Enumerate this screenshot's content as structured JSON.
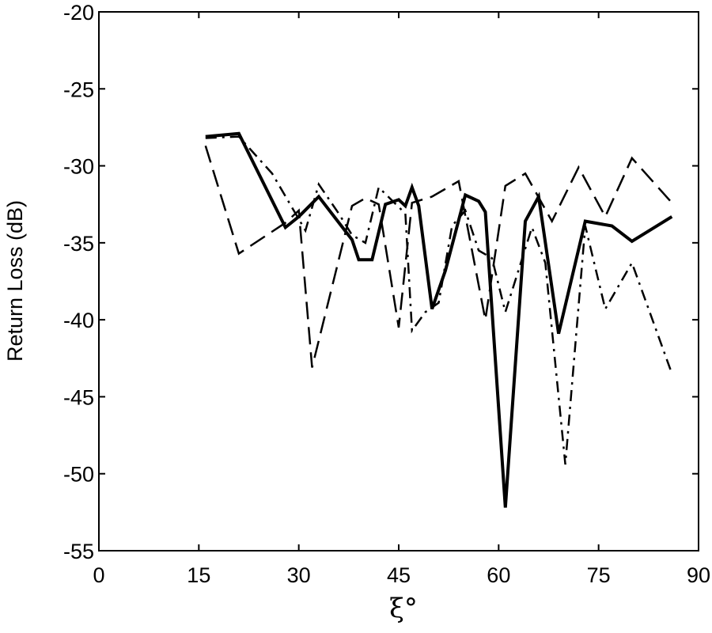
{
  "chart_data": {
    "type": "line",
    "title": "",
    "xlabel": "ξ°",
    "ylabel": "Return Loss (dB)",
    "xlim": [
      0,
      90
    ],
    "ylim": [
      -55,
      -20
    ],
    "xticks": [
      0,
      15,
      30,
      45,
      60,
      75,
      90
    ],
    "yticks": [
      -55,
      -50,
      -45,
      -40,
      -35,
      -30,
      -25,
      -20
    ],
    "grid": false,
    "legend": "none",
    "series": [
      {
        "style": "solid",
        "points": [
          [
            16,
            -28.1
          ],
          [
            21,
            -27.9
          ],
          [
            28,
            -34.0
          ],
          [
            30,
            -33.3
          ],
          [
            33,
            -32.0
          ],
          [
            38,
            -34.8
          ],
          [
            39,
            -36.1
          ],
          [
            41,
            -36.1
          ],
          [
            43,
            -32.5
          ],
          [
            45,
            -32.2
          ],
          [
            46,
            -32.6
          ],
          [
            47,
            -31.4
          ],
          [
            48,
            -32.6
          ],
          [
            50,
            -39.3
          ],
          [
            52,
            -36.8
          ],
          [
            55,
            -31.9
          ],
          [
            57,
            -32.3
          ],
          [
            58,
            -33.0
          ],
          [
            61,
            -52.2
          ],
          [
            64,
            -33.6
          ],
          [
            66,
            -32.0
          ],
          [
            69,
            -40.9
          ],
          [
            73,
            -33.6
          ],
          [
            77,
            -33.9
          ],
          [
            80,
            -34.9
          ],
          [
            86,
            -33.3
          ]
        ]
      },
      {
        "style": "dashed",
        "points": [
          [
            16,
            -28.7
          ],
          [
            21,
            -35.7
          ],
          [
            28,
            -33.7
          ],
          [
            30,
            -32.9
          ],
          [
            32,
            -43.1
          ],
          [
            38,
            -32.6
          ],
          [
            40,
            -32.1
          ],
          [
            42,
            -32.5
          ],
          [
            45,
            -40.5
          ],
          [
            47,
            -32.4
          ],
          [
            50,
            -32.0
          ],
          [
            54,
            -31.0
          ],
          [
            58,
            -40.0
          ],
          [
            61,
            -31.3
          ],
          [
            64,
            -30.5
          ],
          [
            68,
            -33.6
          ],
          [
            72,
            -30.1
          ],
          [
            76,
            -33.3
          ],
          [
            80,
            -29.5
          ],
          [
            86,
            -32.4
          ]
        ]
      },
      {
        "style": "dash-dot",
        "points": [
          [
            16,
            -28.2
          ],
          [
            21,
            -28.1
          ],
          [
            26,
            -30.5
          ],
          [
            31,
            -34.2
          ],
          [
            33,
            -31.2
          ],
          [
            36,
            -33.1
          ],
          [
            38,
            -34.5
          ],
          [
            40,
            -35.0
          ],
          [
            42,
            -31.4
          ],
          [
            46,
            -33.1
          ],
          [
            47,
            -40.7
          ],
          [
            49,
            -39.5
          ],
          [
            51,
            -38.9
          ],
          [
            53,
            -33.9
          ],
          [
            55,
            -32.9
          ],
          [
            57,
            -35.5
          ],
          [
            59,
            -36.0
          ],
          [
            61,
            -39.5
          ],
          [
            65,
            -34.0
          ],
          [
            67,
            -36.3
          ],
          [
            70,
            -49.4
          ],
          [
            73,
            -33.9
          ],
          [
            76,
            -39.3
          ],
          [
            80,
            -36.3
          ],
          [
            86,
            -43.5
          ]
        ]
      }
    ]
  }
}
